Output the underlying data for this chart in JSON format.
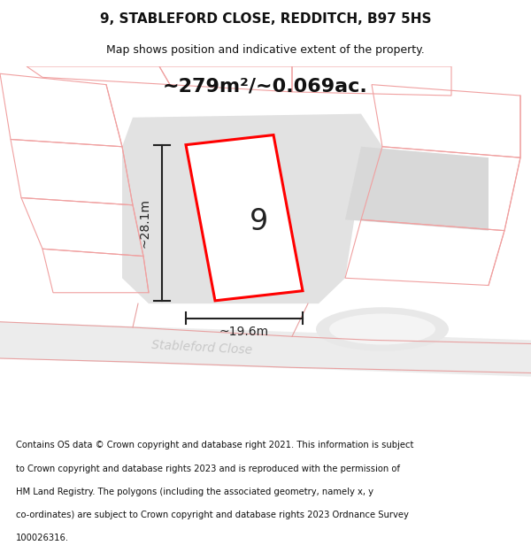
{
  "title": "9, STABLEFORD CLOSE, REDDITCH, B97 5HS",
  "subtitle": "Map shows position and indicative extent of the property.",
  "area_text": "~279m²/~0.069ac.",
  "house_number": "9",
  "dim_width": "~19.6m",
  "dim_height": "~28.1m",
  "street_label": "Stableford Close",
  "footer_lines": [
    "Contains OS data © Crown copyright and database right 2021. This information is subject",
    "to Crown copyright and database rights 2023 and is reproduced with the permission of",
    "HM Land Registry. The polygons (including the associated geometry, namely x, y",
    "co-ordinates) are subject to Crown copyright and database rights 2023 Ordnance Survey",
    "100026316."
  ],
  "bg_color": "#ffffff",
  "map_bg": "#f7f7f7",
  "plot_fill": "#ffffff",
  "plot_outline": "#ff0000",
  "pink": "#f0a0a0",
  "gray_fill": "#e0e0e0",
  "dim_line_color": "#222222",
  "title_color": "#111111",
  "footer_color": "#111111",
  "street_color": "#c8c8c8"
}
